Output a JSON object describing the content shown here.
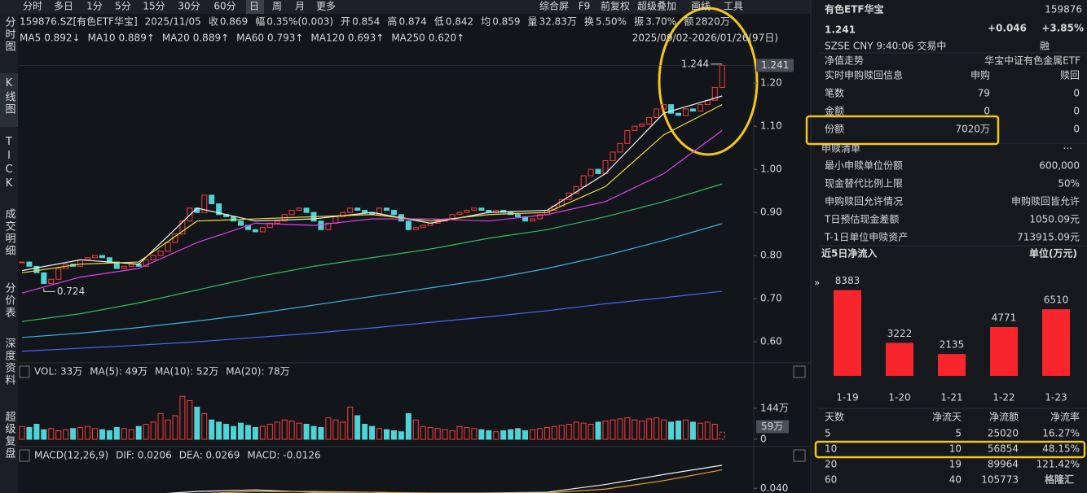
{
  "toolbar": {
    "tabs": [
      "分时",
      "多日",
      "1分",
      "5分",
      "15分",
      "30分",
      "60分",
      "日",
      "周",
      "月",
      "更多"
    ],
    "tools": [
      "综合屏",
      "F9",
      "前复权",
      "超级叠加",
      "画线",
      "工具"
    ]
  },
  "sidebar": [
    "分时图",
    "K线图",
    "TICK",
    "成交明细",
    "分价表",
    "深度资料",
    "超级复盘"
  ],
  "quote": {
    "code": "159876.SZ[有色ETF华宝]",
    "date": "2025/11/05",
    "fields": [
      {
        "label": "收",
        "value": "0.869",
        "color": "#ff4040"
      },
      {
        "label": "幅",
        "value": "0.35%(0.003)",
        "color": "#ff4040"
      },
      {
        "label": "开",
        "value": "0.854",
        "color": "#3fd06a"
      },
      {
        "label": "高",
        "value": "0.874",
        "color": "#ff4040"
      },
      {
        "label": "低",
        "value": "0.842",
        "color": "#3fd06a"
      },
      {
        "label": "均",
        "value": "0.859",
        "color": "#3fd06a"
      },
      {
        "label": "量",
        "value": "32.83万",
        "color": "#e6e6e6"
      },
      {
        "label": "换",
        "value": "5.50%",
        "color": "#e6e6e6"
      },
      {
        "label": "振",
        "value": "3.70%",
        "color": "#e6e6e6"
      },
      {
        "label": "额",
        "value": "2820万",
        "color": "#e6e6e6"
      }
    ]
  },
  "range_label": "2025/09/02-2026/01/26(97日)",
  "kline": {
    "closes": [
      0.785,
      0.775,
      0.76,
      0.735,
      0.745,
      0.77,
      0.78,
      0.775,
      0.79,
      0.795,
      0.8,
      0.795,
      0.785,
      0.77,
      0.775,
      0.78,
      0.775,
      0.79,
      0.8,
      0.81,
      0.83,
      0.85,
      0.88,
      0.91,
      0.9,
      0.94,
      0.92,
      0.895,
      0.89,
      0.88,
      0.87,
      0.86,
      0.855,
      0.865,
      0.875,
      0.88,
      0.895,
      0.905,
      0.91,
      0.9,
      0.88,
      0.86,
      0.875,
      0.89,
      0.9,
      0.91,
      0.905,
      0.9,
      0.895,
      0.91,
      0.905,
      0.895,
      0.88,
      0.86,
      0.865,
      0.87,
      0.875,
      0.88,
      0.885,
      0.895,
      0.9,
      0.905,
      0.91,
      0.905,
      0.9,
      0.905,
      0.9,
      0.895,
      0.89,
      0.88,
      0.885,
      0.895,
      0.905,
      0.915,
      0.93,
      0.945,
      0.96,
      0.985,
      1.0,
      0.99,
      1.02,
      1.04,
      1.06,
      1.09,
      1.1,
      1.105,
      1.12,
      1.14,
      1.15,
      1.13,
      1.125,
      1.14,
      1.135,
      1.15,
      1.16,
      1.19,
      1.241
    ],
    "up_color": "#ff3c3c",
    "down_color": "#4fd3d6",
    "ylim": [
      0.553,
      1.287
    ],
    "yticks": [
      {
        "value": 0.6,
        "label": "0.60"
      },
      {
        "value": 0.7,
        "label": "0.70"
      },
      {
        "value": 0.8,
        "label": "0.80"
      },
      {
        "value": 0.9,
        "label": "0.90"
      },
      {
        "value": 1.0,
        "label": "1.00"
      },
      {
        "value": 1.1,
        "label": "1.10"
      },
      {
        "value": 1.2,
        "label": "1.20"
      }
    ],
    "last_price": 1.241,
    "high_marker": {
      "value": 1.244,
      "index": 96
    },
    "low_marker": {
      "value": 0.724,
      "index": 3
    },
    "ma_x": [
      0,
      8,
      16,
      24,
      32,
      40,
      48,
      56,
      64,
      72,
      80,
      88,
      96
    ],
    "ma": [
      {
        "name": "MA5",
        "label": "0.892↓",
        "color": "#f2f2f2",
        "values": [
          0.765,
          0.79,
          0.78,
          0.91,
          0.88,
          0.885,
          0.9,
          0.875,
          0.9,
          0.905,
          0.99,
          1.13,
          1.17
        ]
      },
      {
        "name": "MA10",
        "label": "0.889↑",
        "color": "#f0e040",
        "values": [
          0.76,
          0.78,
          0.785,
          0.88,
          0.885,
          0.89,
          0.895,
          0.88,
          0.895,
          0.9,
          0.96,
          1.08,
          1.15
        ]
      },
      {
        "name": "MA20",
        "label": "0.889↑",
        "color": "#e040f0",
        "values": [
          0.713,
          0.75,
          0.77,
          0.83,
          0.875,
          0.87,
          0.885,
          0.885,
          0.88,
          0.895,
          0.925,
          0.99,
          1.09
        ]
      },
      {
        "name": "MA60",
        "label": "0.793↑",
        "color": "#30c060",
        "values": [
          0.647,
          0.665,
          0.69,
          0.72,
          0.75,
          0.775,
          0.795,
          0.815,
          0.84,
          0.86,
          0.89,
          0.925,
          0.966
        ]
      },
      {
        "name": "MA120",
        "label": "0.693↑",
        "color": "#38b4e8",
        "values": [
          0.61,
          0.62,
          0.633,
          0.648,
          0.665,
          0.685,
          0.705,
          0.725,
          0.745,
          0.77,
          0.8,
          0.835,
          0.874
        ]
      },
      {
        "name": "MA250",
        "label": "0.620↑",
        "color": "#4a68ff",
        "values": [
          0.578,
          0.585,
          0.592,
          0.6,
          0.61,
          0.62,
          0.632,
          0.645,
          0.658,
          0.672,
          0.688,
          0.702,
          0.717
        ]
      }
    ]
  },
  "volume": {
    "header": [
      {
        "text": "VOL: 33万",
        "color": "#e6e6e6"
      },
      {
        "text": "MA(5): 49万",
        "color": "#e6e6e6"
      },
      {
        "text": "MA(10): 52万",
        "color": "#f0e040"
      },
      {
        "text": "MA(20): 78万",
        "color": "#e040f0"
      }
    ],
    "values": [
      60,
      55,
      70,
      45,
      50,
      40,
      45,
      50,
      55,
      60,
      50,
      45,
      40,
      55,
      50,
      45,
      60,
      70,
      80,
      120,
      90,
      110,
      200,
      180,
      150,
      120,
      90,
      80,
      70,
      60,
      75,
      65,
      55,
      60,
      70,
      80,
      90,
      85,
      75,
      70,
      60,
      55,
      100,
      90,
      80,
      150,
      110,
      70,
      60,
      50,
      45,
      40,
      35,
      120,
      90,
      60,
      55,
      50,
      45,
      40,
      60,
      55,
      50,
      45,
      40,
      35,
      40,
      45,
      50,
      40,
      45,
      50,
      55,
      60,
      65,
      70,
      80,
      75,
      70,
      80,
      85,
      90,
      95,
      100,
      90,
      85,
      95,
      100,
      90,
      80,
      85,
      90,
      80,
      75,
      80,
      70,
      33
    ],
    "ylim": [
      0,
      265
    ],
    "yticks": [
      0,
      {
        "value": 144,
        "label": "144万"
      }
    ],
    "marker": {
      "value": 59,
      "label": "59万"
    }
  },
  "macd": {
    "header": [
      {
        "text": "MACD(12,26,9)",
        "color": "#e6e6e6"
      },
      {
        "text": "DIF: 0.0206",
        "color": "#e6e6e6"
      },
      {
        "text": "DEA: 0.0269",
        "color": "#f0e040"
      },
      {
        "text": "MACD: -0.0126",
        "color": "#e040f0"
      }
    ],
    "dif": [
      0.03,
      0.032,
      0.031,
      0.036,
      0.038,
      0.035,
      0.035,
      0.033,
      0.034,
      0.035,
      0.045,
      0.058,
      0.07
    ],
    "dea": [
      0.029,
      0.03,
      0.031,
      0.033,
      0.036,
      0.036,
      0.035,
      0.034,
      0.034,
      0.034,
      0.039,
      0.05,
      0.064
    ],
    "ylim": [
      0.034,
      0.072
    ],
    "yticks": [
      {
        "value": 0.04,
        "label": "0.040"
      }
    ]
  },
  "panel": {
    "name": "有色ETF华宝",
    "code": "159876",
    "price": "1.241",
    "change": "+0.046",
    "change_pct": "+3.85%",
    "status": "SZSE  CNY  9:40:06  交易中",
    "tag": "融",
    "nav": {
      "label": "净值走势",
      "value": "华宝中证有色金属ETF"
    },
    "realtime": {
      "title": "实时申购赎回信息",
      "columns": [
        "申购",
        "赎回"
      ],
      "rows": [
        [
          "笔数",
          "79",
          "0"
        ],
        [
          "金额",
          "0",
          "0"
        ],
        [
          "份额",
          "7020万",
          "0"
        ]
      ]
    },
    "list": {
      "title": "申赎清单",
      "more": "···",
      "rows": [
        [
          "最小申赎单位份额",
          "600,000"
        ],
        [
          "现金替代比例上限",
          "50%"
        ],
        [
          "申购赎回允许情况",
          "申购赎回皆允许"
        ],
        [
          "T日预估现金差额",
          "1050.09元"
        ],
        [
          "T-1日单位申赎资产",
          "713915.09元"
        ]
      ]
    }
  },
  "flow_chart": {
    "type": "bar",
    "title": "近5日净流入",
    "unit": "单位(万元)",
    "categories": [
      "1-19",
      "1-20",
      "1-21",
      "1-22",
      "1-23"
    ],
    "values": [
      8383,
      3222,
      2135,
      4771,
      6510
    ],
    "color": "#f8262c",
    "ylim": [
      0,
      10500
    ]
  },
  "flow_table": {
    "header": [
      "天数",
      "净流天",
      "净流额",
      "净流率"
    ],
    "rows": [
      [
        "5",
        "5",
        "25020",
        "16.27%"
      ],
      [
        "10",
        "10",
        "56854",
        "48.15%"
      ],
      [
        "20",
        "19",
        "89964",
        "121.42%"
      ],
      [
        "60",
        "40",
        "105773"
      ]
    ]
  },
  "watermark": "格隆汇"
}
